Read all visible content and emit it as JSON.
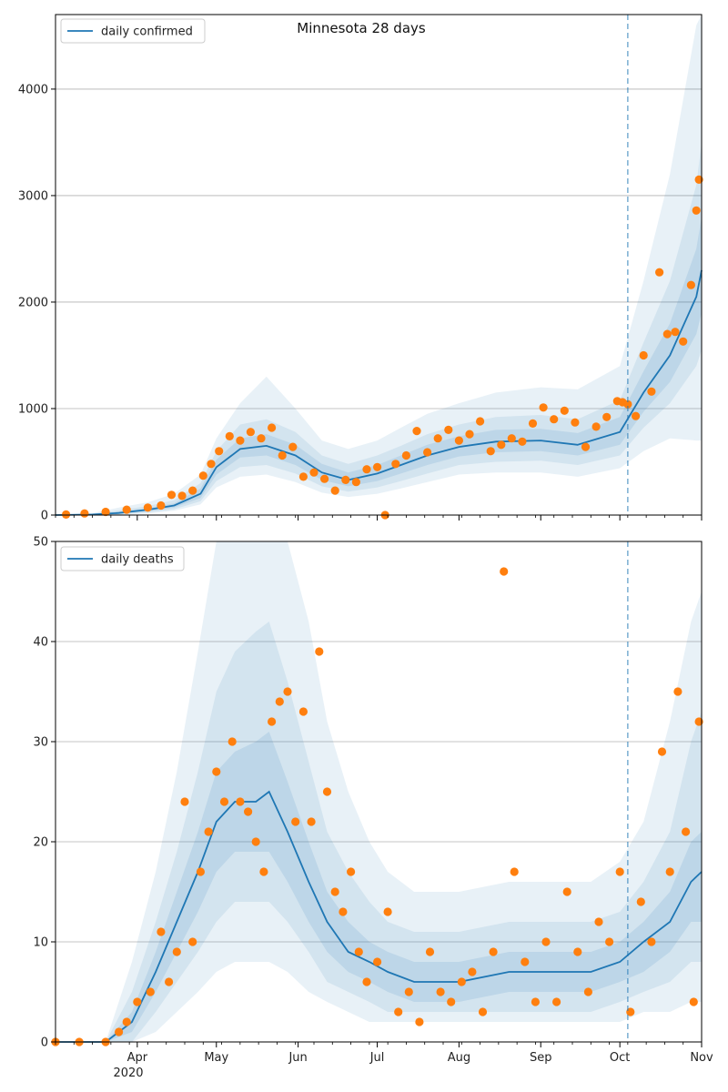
{
  "title": "Minnesota 28 days",
  "colors": {
    "model_line": "#1f77b4",
    "observed": "#ff7f0e",
    "band": "#1f77b4",
    "forecast_marker": "#1f77b4",
    "grid": "#b0b0b0"
  },
  "x_axis": {
    "tick_labels": [
      "Apr",
      "May",
      "Jun",
      "Jul",
      "Aug",
      "Sep",
      "Oct",
      "Nov"
    ],
    "year_label": "2020",
    "range": [
      "2020-03-01",
      "2020-11-01"
    ]
  },
  "forecast_start": "2020-10-04",
  "chart_data": [
    {
      "type": "line",
      "legend": "daily confirmed",
      "legend_position": "top-left",
      "grid": "horizontal",
      "ylim": [
        0,
        4700
      ],
      "yticks": [
        0,
        1000,
        2000,
        3000,
        4000
      ],
      "model": {
        "x": [
          "2020-03-01",
          "2020-03-15",
          "2020-03-25",
          "2020-04-05",
          "2020-04-15",
          "2020-04-25",
          "2020-05-01",
          "2020-05-10",
          "2020-05-20",
          "2020-05-31",
          "2020-06-10",
          "2020-06-20",
          "2020-07-01",
          "2020-07-10",
          "2020-07-20",
          "2020-08-01",
          "2020-08-15",
          "2020-09-01",
          "2020-09-15",
          "2020-10-01",
          "2020-10-10",
          "2020-10-20",
          "2020-10-30",
          "2020-11-01"
        ],
        "median": [
          0,
          5,
          20,
          50,
          90,
          200,
          450,
          620,
          650,
          560,
          400,
          330,
          390,
          470,
          560,
          640,
          690,
          700,
          660,
          780,
          1150,
          1500,
          2050,
          2300
        ],
        "band50": [
          [
            0,
            0
          ],
          [
            2,
            8
          ],
          [
            10,
            30
          ],
          [
            35,
            65
          ],
          [
            70,
            110
          ],
          [
            160,
            250
          ],
          [
            380,
            520
          ],
          [
            540,
            720
          ],
          [
            560,
            760
          ],
          [
            470,
            660
          ],
          [
            330,
            480
          ],
          [
            270,
            400
          ],
          [
            320,
            470
          ],
          [
            390,
            560
          ],
          [
            470,
            660
          ],
          [
            550,
            740
          ],
          [
            590,
            800
          ],
          [
            600,
            810
          ],
          [
            560,
            770
          ],
          [
            660,
            920
          ],
          [
            970,
            1350
          ],
          [
            1250,
            1800
          ],
          [
            1700,
            2500
          ],
          [
            1900,
            2800
          ]
        ],
        "band80": [
          [
            0,
            0
          ],
          [
            1,
            12
          ],
          [
            5,
            45
          ],
          [
            25,
            85
          ],
          [
            55,
            140
          ],
          [
            130,
            300
          ],
          [
            320,
            600
          ],
          [
            450,
            850
          ],
          [
            470,
            900
          ],
          [
            390,
            780
          ],
          [
            270,
            560
          ],
          [
            220,
            480
          ],
          [
            260,
            560
          ],
          [
            320,
            650
          ],
          [
            390,
            760
          ],
          [
            470,
            850
          ],
          [
            500,
            920
          ],
          [
            510,
            940
          ],
          [
            470,
            900
          ],
          [
            560,
            1080
          ],
          [
            820,
            1620
          ],
          [
            1050,
            2200
          ],
          [
            1400,
            3100
          ],
          [
            1550,
            3500
          ]
        ],
        "band95": [
          [
            0,
            0
          ],
          [
            0,
            18
          ],
          [
            2,
            70
          ],
          [
            15,
            120
          ],
          [
            40,
            200
          ],
          [
            100,
            380
          ],
          [
            260,
            720
          ],
          [
            360,
            1050
          ],
          [
            380,
            1300
          ],
          [
            310,
            1000
          ],
          [
            210,
            700
          ],
          [
            170,
            620
          ],
          [
            200,
            700
          ],
          [
            250,
            820
          ],
          [
            310,
            950
          ],
          [
            380,
            1050
          ],
          [
            400,
            1150
          ],
          [
            400,
            1200
          ],
          [
            360,
            1180
          ],
          [
            440,
            1400
          ],
          [
            600,
            2200
          ],
          [
            720,
            3200
          ],
          [
            700,
            4600
          ],
          [
            700,
            4700
          ]
        ]
      },
      "observed": {
        "x": [
          "2020-03-05",
          "2020-03-12",
          "2020-03-20",
          "2020-03-28",
          "2020-04-05",
          "2020-04-10",
          "2020-04-14",
          "2020-04-18",
          "2020-04-22",
          "2020-04-26",
          "2020-04-29",
          "2020-05-02",
          "2020-05-06",
          "2020-05-10",
          "2020-05-14",
          "2020-05-18",
          "2020-05-22",
          "2020-05-26",
          "2020-05-30",
          "2020-06-03",
          "2020-06-07",
          "2020-06-11",
          "2020-06-15",
          "2020-06-19",
          "2020-06-23",
          "2020-06-27",
          "2020-07-01",
          "2020-07-04",
          "2020-07-08",
          "2020-07-12",
          "2020-07-16",
          "2020-07-20",
          "2020-07-24",
          "2020-07-28",
          "2020-08-01",
          "2020-08-05",
          "2020-08-09",
          "2020-08-13",
          "2020-08-17",
          "2020-08-21",
          "2020-08-25",
          "2020-08-29",
          "2020-09-02",
          "2020-09-06",
          "2020-09-10",
          "2020-09-14",
          "2020-09-18",
          "2020-09-22",
          "2020-09-26",
          "2020-09-30",
          "2020-10-02",
          "2020-10-04",
          "2020-10-07",
          "2020-10-10",
          "2020-10-13",
          "2020-10-16",
          "2020-10-19",
          "2020-10-22",
          "2020-10-25",
          "2020-10-28",
          "2020-10-30",
          "2020-10-31"
        ],
        "y": [
          5,
          15,
          30,
          50,
          70,
          90,
          190,
          180,
          230,
          370,
          480,
          600,
          740,
          700,
          780,
          720,
          820,
          560,
          640,
          360,
          400,
          340,
          230,
          330,
          310,
          430,
          450,
          0,
          480,
          560,
          790,
          590,
          720,
          800,
          700,
          760,
          880,
          600,
          660,
          720,
          690,
          860,
          1010,
          900,
          980,
          870,
          640,
          830,
          920,
          1070,
          1060,
          1040,
          930,
          1500,
          1160,
          2280,
          1700,
          1720,
          1630,
          2160,
          2860,
          3150
        ]
      }
    },
    {
      "type": "line",
      "legend": "daily deaths",
      "legend_position": "top-left",
      "grid": "horizontal",
      "ylim": [
        0,
        50
      ],
      "yticks": [
        0,
        10,
        20,
        30,
        40,
        50
      ],
      "model": {
        "x": [
          "2020-03-01",
          "2020-03-20",
          "2020-03-30",
          "2020-04-08",
          "2020-04-16",
          "2020-04-24",
          "2020-05-01",
          "2020-05-08",
          "2020-05-16",
          "2020-05-21",
          "2020-05-28",
          "2020-06-05",
          "2020-06-12",
          "2020-06-20",
          "2020-06-28",
          "2020-07-05",
          "2020-07-15",
          "2020-08-01",
          "2020-08-20",
          "2020-09-05",
          "2020-09-20",
          "2020-10-01",
          "2020-10-10",
          "2020-10-20",
          "2020-10-28",
          "2020-11-01"
        ],
        "median": [
          0,
          0,
          2,
          7,
          12,
          17,
          22,
          24,
          24,
          25,
          21,
          16,
          12,
          9,
          8,
          7,
          6,
          6,
          7,
          7,
          7,
          8,
          10,
          12,
          16,
          17
        ],
        "band50": [
          [
            0,
            0
          ],
          [
            0,
            0
          ],
          [
            1,
            3
          ],
          [
            5,
            9
          ],
          [
            9,
            15
          ],
          [
            13,
            21
          ],
          [
            17,
            27
          ],
          [
            19,
            29
          ],
          [
            19,
            30
          ],
          [
            19,
            31
          ],
          [
            16,
            26
          ],
          [
            12,
            20
          ],
          [
            9,
            15
          ],
          [
            7,
            12
          ],
          [
            6,
            10
          ],
          [
            5,
            9
          ],
          [
            4,
            8
          ],
          [
            4,
            8
          ],
          [
            5,
            9
          ],
          [
            5,
            9
          ],
          [
            5,
            9
          ],
          [
            6,
            10
          ],
          [
            7,
            12
          ],
          [
            9,
            15
          ],
          [
            12,
            20
          ],
          [
            12,
            21
          ]
        ],
        "band80": [
          [
            0,
            0
          ],
          [
            0,
            0
          ],
          [
            0,
            5
          ],
          [
            3,
            12
          ],
          [
            6,
            19
          ],
          [
            9,
            27
          ],
          [
            12,
            35
          ],
          [
            14,
            39
          ],
          [
            14,
            41
          ],
          [
            14,
            42
          ],
          [
            12,
            36
          ],
          [
            9,
            28
          ],
          [
            6,
            21
          ],
          [
            5,
            17
          ],
          [
            4,
            14
          ],
          [
            3,
            12
          ],
          [
            3,
            11
          ],
          [
            3,
            11
          ],
          [
            3,
            12
          ],
          [
            3,
            12
          ],
          [
            3,
            12
          ],
          [
            4,
            13
          ],
          [
            5,
            16
          ],
          [
            6,
            21
          ],
          [
            8,
            30
          ],
          [
            8,
            33
          ]
        ],
        "band95": [
          [
            0,
            0
          ],
          [
            0,
            0
          ],
          [
            0,
            8
          ],
          [
            1,
            17
          ],
          [
            3,
            27
          ],
          [
            5,
            39
          ],
          [
            7,
            50
          ],
          [
            8,
            50
          ],
          [
            8,
            50
          ],
          [
            8,
            50
          ],
          [
            7,
            50
          ],
          [
            5,
            42
          ],
          [
            4,
            32
          ],
          [
            3,
            25
          ],
          [
            2,
            20
          ],
          [
            2,
            17
          ],
          [
            2,
            15
          ],
          [
            2,
            15
          ],
          [
            2,
            16
          ],
          [
            2,
            16
          ],
          [
            2,
            16
          ],
          [
            2,
            18
          ],
          [
            3,
            22
          ],
          [
            3,
            32
          ],
          [
            4,
            42
          ],
          [
            4,
            45
          ]
        ]
      },
      "observed": {
        "x": [
          "2020-03-01",
          "2020-03-10",
          "2020-03-20",
          "2020-03-25",
          "2020-03-28",
          "2020-04-01",
          "2020-04-06",
          "2020-04-10",
          "2020-04-13",
          "2020-04-16",
          "2020-04-19",
          "2020-04-22",
          "2020-04-25",
          "2020-04-28",
          "2020-05-01",
          "2020-05-04",
          "2020-05-07",
          "2020-05-10",
          "2020-05-13",
          "2020-05-16",
          "2020-05-19",
          "2020-05-22",
          "2020-05-25",
          "2020-05-28",
          "2020-05-31",
          "2020-06-03",
          "2020-06-06",
          "2020-06-09",
          "2020-06-12",
          "2020-06-15",
          "2020-06-18",
          "2020-06-21",
          "2020-06-24",
          "2020-06-27",
          "2020-07-01",
          "2020-07-05",
          "2020-07-09",
          "2020-07-13",
          "2020-07-17",
          "2020-07-21",
          "2020-07-25",
          "2020-07-29",
          "2020-08-02",
          "2020-08-06",
          "2020-08-10",
          "2020-08-14",
          "2020-08-18",
          "2020-08-22",
          "2020-08-26",
          "2020-08-30",
          "2020-09-03",
          "2020-09-07",
          "2020-09-11",
          "2020-09-15",
          "2020-09-19",
          "2020-09-23",
          "2020-09-27",
          "2020-10-01",
          "2020-10-05",
          "2020-10-09",
          "2020-10-13",
          "2020-10-17",
          "2020-10-20",
          "2020-10-23",
          "2020-10-26",
          "2020-10-29",
          "2020-10-31"
        ],
        "y": [
          0,
          0,
          0,
          1,
          2,
          4,
          5,
          11,
          6,
          9,
          24,
          10,
          17,
          21,
          27,
          24,
          30,
          24,
          23,
          20,
          17,
          32,
          34,
          35,
          22,
          33,
          22,
          39,
          25,
          15,
          13,
          17,
          9,
          6,
          8,
          13,
          3,
          5,
          2,
          9,
          5,
          4,
          6,
          7,
          3,
          9,
          47,
          17,
          8,
          4,
          10,
          4,
          15,
          9,
          5,
          12,
          10,
          17,
          3,
          14,
          10,
          29,
          17,
          35,
          21,
          4,
          32
        ]
      }
    }
  ]
}
